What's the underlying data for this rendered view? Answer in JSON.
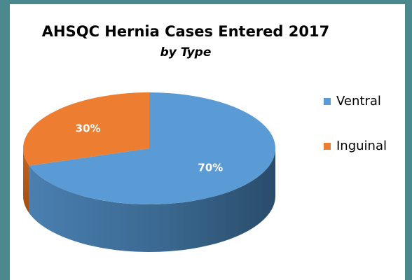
{
  "chart_data": {
    "type": "pie",
    "title": "AHSQC Hernia Cases Entered 2017",
    "subtitle": "by Type",
    "categories": [
      "Ventral",
      "Inguinal"
    ],
    "values": [
      70,
      30
    ],
    "value_labels": [
      "70%",
      "30%"
    ],
    "colors": [
      "#5b9bd5",
      "#ed7d31"
    ],
    "legend": "right"
  }
}
